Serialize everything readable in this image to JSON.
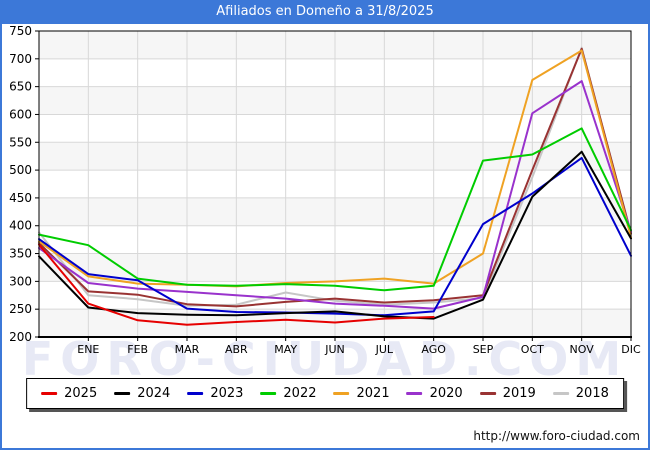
{
  "title": "Afiliados en Domeño a 31/8/2025",
  "watermark": "FORO-CIUDAD.COM",
  "url": "http://www.foro-ciudad.com",
  "colors": {
    "frame_blue": "#3c78d8",
    "band_gray": "#f6f6f6",
    "grid_gray": "#d8d8d8",
    "axis_black": "#000000"
  },
  "chart_data": {
    "type": "line",
    "title": "Afiliados en Domeño a 31/8/2025",
    "xlabel": "",
    "ylabel": "",
    "ylim": [
      200,
      750
    ],
    "ytick_step": 50,
    "grid": true,
    "legend_position": "bottom",
    "x_note": "each series has an unlabeled starting point at the plot left edge, then one point per month",
    "categories": [
      "ENE",
      "FEB",
      "MAR",
      "ABR",
      "MAY",
      "JUN",
      "JUL",
      "AGO",
      "SEP",
      "OCT",
      "NOV",
      "DIC"
    ],
    "series": [
      {
        "name": "2025",
        "color": "#e60000",
        "values": [
          366,
          260,
          230,
          222,
          227,
          231,
          226,
          233,
          236,
          null,
          null,
          null,
          null
        ]
      },
      {
        "name": "2024",
        "color": "#000000",
        "values": [
          345,
          253,
          243,
          240,
          239,
          243,
          246,
          237,
          233,
          267,
          452,
          533,
          377
        ]
      },
      {
        "name": "2023",
        "color": "#0000cc",
        "values": [
          376,
          313,
          302,
          251,
          245,
          244,
          242,
          239,
          246,
          403,
          458,
          522,
          346
        ]
      },
      {
        "name": "2022",
        "color": "#00cc00",
        "values": [
          384,
          365,
          305,
          294,
          292,
          295,
          292,
          284,
          292,
          517,
          528,
          575,
          392
        ]
      },
      {
        "name": "2021",
        "color": "#efa223",
        "values": [
          372,
          309,
          296,
          294,
          291,
          297,
          300,
          305,
          296,
          350,
          662,
          715,
          379
        ]
      },
      {
        "name": "2020",
        "color": "#9932cc",
        "values": [
          360,
          297,
          287,
          281,
          275,
          269,
          260,
          256,
          251,
          272,
          602,
          660,
          389
        ]
      },
      {
        "name": "2019",
        "color": "#993333",
        "values": [
          369,
          282,
          276,
          259,
          255,
          263,
          269,
          262,
          266,
          275,
          500,
          718,
          386
        ]
      },
      {
        "name": "2018",
        "color": "#c6c6c6",
        "values": [
          388,
          275,
          268,
          256,
          258,
          280,
          265,
          258,
          262,
          270,
          487,
          720,
          384
        ]
      }
    ]
  }
}
